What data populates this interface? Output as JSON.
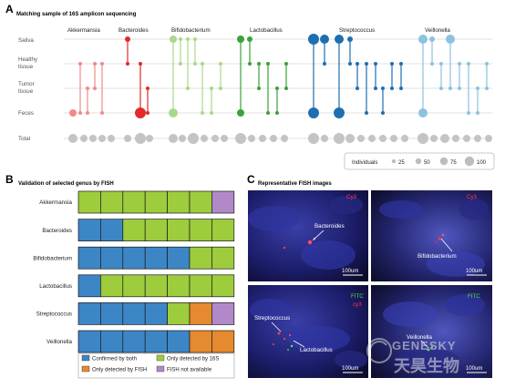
{
  "panel_a": {
    "letter": "A",
    "title": "Matching sample of 16S amplicon sequencing",
    "rows": [
      "Saliva",
      "Healthy\ntissue",
      "Tumor\ntissue",
      "Feces",
      "Total"
    ],
    "genera": [
      {
        "name": "Akkermansia",
        "color": "#f08a8a"
      },
      {
        "name": "Bacteroides",
        "color": "#e32a2a"
      },
      {
        "name": "Bifidobacterium",
        "color": "#a9d88a"
      },
      {
        "name": "Lactobacillus",
        "color": "#3aa23a"
      },
      {
        "name": "Streptococcus",
        "color": "#1f6fb0"
      },
      {
        "name": "Veillonella",
        "color": "#8ac3e0"
      }
    ],
    "legend": {
      "title": "Individuals",
      "values": [
        "25",
        "50",
        "75",
        "100"
      ]
    }
  },
  "panel_b": {
    "letter": "B",
    "title": "Validation of selected genus by FISH",
    "rows": [
      {
        "name": "Akkermansia",
        "cells": [
          "g",
          "g",
          "g",
          "g",
          "g",
          "g",
          "p"
        ]
      },
      {
        "name": "Bacteroides",
        "cells": [
          "b",
          "b",
          "g",
          "g",
          "g",
          "g",
          "g"
        ]
      },
      {
        "name": "Bifidobacterium",
        "cells": [
          "b",
          "b",
          "b",
          "b",
          "b",
          "g",
          "g"
        ]
      },
      {
        "name": "Lactobacillus",
        "cells": [
          "b",
          "g",
          "g",
          "g",
          "g",
          "g",
          "g"
        ]
      },
      {
        "name": "Streptococcus",
        "cells": [
          "b",
          "b",
          "b",
          "b",
          "g",
          "o",
          "p"
        ]
      },
      {
        "name": "Veillonella",
        "cells": [
          "b",
          "b",
          "b",
          "b",
          "b",
          "o",
          "o"
        ]
      }
    ],
    "colors": {
      "b": "#3d86c6",
      "g": "#9dcc3d",
      "o": "#e58a2e",
      "p": "#b189c9"
    },
    "legend": [
      {
        "key": "b",
        "label": "Confirmed by both"
      },
      {
        "key": "o",
        "label": "Only detected by FISH"
      },
      {
        "key": "g",
        "label": "Only detected by 16S"
      },
      {
        "key": "p",
        "label": "FISH not available"
      }
    ]
  },
  "panel_c": {
    "letter": "C",
    "title": "Representative FISH images",
    "images": [
      {
        "channel1": "Cy3",
        "channel2": "",
        "target": "Bacteroides",
        "target2": "",
        "scale": "100um"
      },
      {
        "channel1": "Cy3",
        "channel2": "",
        "target": "Bifidobacterium",
        "target2": "",
        "scale": "100um"
      },
      {
        "channel1": "FITC",
        "channel2": "cy3",
        "target": "Streptococcus",
        "target2": "Lactobacillus",
        "scale": "100um"
      },
      {
        "channel1": "FITC",
        "channel2": "",
        "target": "Veillonella",
        "target2": "",
        "scale": "100um"
      }
    ],
    "watermark": {
      "latin": "GENESKY",
      "cjk": "天昊生物"
    }
  }
}
